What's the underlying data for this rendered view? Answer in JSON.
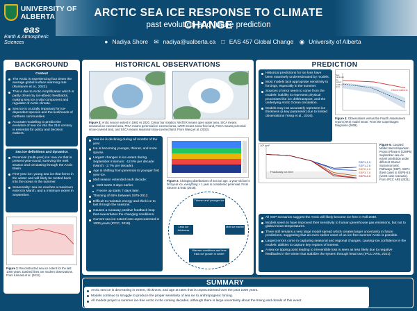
{
  "header": {
    "university": "UNIVERSITY OF ALBERTA",
    "eas_mark": "eas",
    "department": "Earth & Atmospheric Sciences",
    "title": "ARCTIC SEA ICE RESPONSE TO CLIMATE CHANGE",
    "subtitle": "past evolution and future prediction",
    "author": "Nadiya Shore",
    "email": "nadiya@ualberta.ca",
    "course": "EAS 457 Global Change",
    "affiliation": "University of Alberta"
  },
  "background": {
    "title": "BACKGROUND",
    "context_head": "Context",
    "context": [
      "The Arctic is experiencing four times the average global surface warming rate (Rantanen et al., 2022).",
      "This is due to Arctic Amplification which is partly driven by ice-albedo feedbacks, making sea ice a vital component and regulator of Arctic climate.",
      "Sea ice is crucially important for ice-dependent species and the livelihoods of northern communities.",
      "Accurate modelling to predict the evolution of sea ice into the 21st century is essential for policy and decision makers."
    ],
    "defs_head": "Sea ice definitions and dynamics",
    "defs": [
      "Perennial (multi-year) ice: sea ice that is present year-round, surviving the melt season and circulating through the Arctic Basin.",
      "First-year ice: young sea ice that forms in the winter and will likely be melted back into the ocean in the summer.",
      "Seasonality: sea ice reaches a maximum extent in March, and a minimum extent in September."
    ],
    "fig1_caption_b": "Figure 1:",
    "fig1_caption": "Reconstructed sea ice extent for the last 1000 years. Dashed lines are modern observations. From Kinnard et al. (2011)."
  },
  "historical": {
    "title": "HISTORICAL OBSERVATIONS",
    "fig3_b": "Figure 3:",
    "fig3": "Arctic sea ice extent in 1982 vs 2020. Colour bar notation: WATER means open water area, SICA means seasonal ice-covered area, PICA means perennial ice covered area, LWIR means snow-free land, FSCA means perennial snow-covered land, and SSCA means seasonal snow-covered land. From Wang et al. (2022).",
    "points": [
      "Sea ice is declining during all months of the year.",
      "Ice is becoming younger, thinner, and more sparse.",
      "Largest changes in ice extent during September minimum: -12.8% per decade (March: -2.7% per decade).",
      "Age is shifting from perennial to younger first year ice.",
      "Melt season extended each decade:"
    ],
    "subpoints": [
      "Melt starts 3 days earlier.",
      "Freeze up starts 7 days later."
    ],
    "points2": [
      "Thinning of 65% between 1975-2012.",
      "Difficult to maintain energy and thick ice to last through the seasons.",
      "Causes a runaway positive feedback loop that exacerbates the changing conditions.",
      "Current sea ice extent loss unprecedented in 1000 years (IPCC, 2019)."
    ],
    "fig2_b": "Figure 2:",
    "fig2": "Changing distributions of sea ice age. 1-year-old ice is first-year ice, everything > 1 year is considered perennial. From Stroeve & Notz (2018).",
    "feedback": [
      "Thinner and younger ice",
      "Less ice thickness",
      "Melt ice earlier",
      "Warmer conditions and less thick ice growth in winter"
    ]
  },
  "prediction": {
    "title": "PREDICTION",
    "points": [
      "Historical predictions for ice loss have been massively underestimated by models.",
      "Most models lack appropriate sensitivity to forcings, especially in the summer.",
      "Sources of error seem to come from the models' inability to represent physical processes like ice drift/transport, and the underlying Arctic Ocean circulation.",
      "Models may not accurately represent ice thickness (a key parameter) due to limited observations (Yang et al., 2016)."
    ],
    "fig4_b": "Figure 4:",
    "fig4": "Observations versus the Fourth Assessment report (AR4) model mean. From the Copenhagen Diagnosis (2009).",
    "fig4_label": "Observations",
    "fig4_ylabel": "Sep. minimum ice extent (million km²)",
    "fig5_b": "Figure 5:",
    "fig5": "Coupled Model Intercomparison Project Phase 6 (CMIP6) September sea ice extent prediction under different Shared Socioeconomic Pathways (SSP). SSP1 (best case) to SSP5-8.5 (worst case scenario). From IPCC AR6 (2021).",
    "fig5_label": "Practically ice-free",
    "fig5_unit": "10⁶ km²",
    "ssp": [
      "SSP1-1.9",
      "SSP1-2.6",
      "SSP2-4.5",
      "SSP3-7.0",
      "SSP5-8.5"
    ],
    "points2": [
      "All SSP scenarios suggest the Arctic will likely become ice-free in Fall 2030.",
      "Models seem to have improved their sensitivity to human greenhouse gas emissions, but not to global mean temperatures.",
      "There still remains a very large model spread which creates larger uncertainty in future predictions, suggesting that an even earlier onset of an ice-free summer Arctic is possible.",
      "Largest errors come in capturing seasonal and regional changes, causing low confidence in the models' abilities to capture key regions of interest.",
      "A sea ice tipping point leading to irreversible loss is seen as less likely due to negative feedbacks in the winter that stabilize the system through heat loss (IPCC AR6, 2021)."
    ]
  },
  "summary": {
    "title": "SUMMARY",
    "points": [
      "Arctic sea ice is decreasing in extent, thickness, and age at rates that is unprecedented over the past 1000 years.",
      "Models continue to struggle to produce the proper sensitivity of sea ice to anthropogenic forcing.",
      "All models project a summer ice-free Arctic in the coming decades, although there is large uncertainty about the timing and details of this event."
    ]
  },
  "chart_data": [
    {
      "type": "line",
      "title": "",
      "x": [
        1000,
        1200,
        1400,
        1600,
        1800,
        1900,
        1950,
        2000
      ],
      "series": [
        {
          "name": "",
          "values": [
            10.0,
            10.3,
            10.1,
            10.4,
            10.2,
            9.9,
            9.6,
            8.4
          ]
        }
      ],
      "xlabel": "",
      "ylabel": ""
    },
    {
      "type": "line",
      "title": "",
      "x": [
        1900,
        1950,
        2000,
        2050,
        2100
      ],
      "xlim": [
        1950,
        2100
      ],
      "ylim": [
        0,
        10
      ],
      "series": [
        {
          "name": "SSP1-1.9",
          "values": [
            7.5,
            7.2,
            5.5,
            3.2,
            3.5
          ]
        },
        {
          "name": "SSP1-2.6",
          "values": [
            7.5,
            7.2,
            5.5,
            2.8,
            2.5
          ]
        },
        {
          "name": "SSP2-4.5",
          "values": [
            7.5,
            7.2,
            5.5,
            1.8,
            0.8
          ]
        },
        {
          "name": "SSP3-7.0",
          "values": [
            7.5,
            7.2,
            5.5,
            1.2,
            0.2
          ]
        },
        {
          "name": "SSP5-8.5",
          "values": [
            7.5,
            7.2,
            5.5,
            0.8,
            0.1
          ]
        }
      ]
    },
    {
      "type": "line",
      "title": "",
      "x": [
        1900,
        1950,
        2000,
        2050,
        2100
      ],
      "series": [
        {
          "name": "Observations",
          "values": [
            8.0,
            7.6,
            6.0,
            0,
            0
          ]
        }
      ]
    }
  ],
  "colors": {
    "primary": "#0d4a72",
    "accent": "#e4b521",
    "ua_green": "#1a7a45",
    "obs_red": "#d23a3a"
  }
}
